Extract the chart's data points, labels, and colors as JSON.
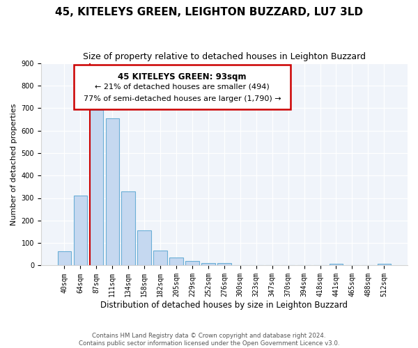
{
  "title": "45, KITELEYS GREEN, LEIGHTON BUZZARD, LU7 3LD",
  "subtitle": "Size of property relative to detached houses in Leighton Buzzard",
  "xlabel": "Distribution of detached houses by size in Leighton Buzzard",
  "ylabel": "Number of detached properties",
  "bar_labels": [
    "40sqm",
    "64sqm",
    "87sqm",
    "111sqm",
    "134sqm",
    "158sqm",
    "182sqm",
    "205sqm",
    "229sqm",
    "252sqm",
    "276sqm",
    "300sqm",
    "323sqm",
    "347sqm",
    "370sqm",
    "394sqm",
    "418sqm",
    "441sqm",
    "465sqm",
    "488sqm",
    "512sqm"
  ],
  "bar_values": [
    63,
    310,
    690,
    655,
    330,
    155,
    65,
    35,
    20,
    12,
    10,
    0,
    0,
    0,
    0,
    0,
    0,
    8,
    0,
    0,
    8
  ],
  "bar_color": "#c5d8f0",
  "bar_edge_color": "#6aaed6",
  "vline_color": "#cc0000",
  "ylim": [
    0,
    900
  ],
  "yticks": [
    0,
    100,
    200,
    300,
    400,
    500,
    600,
    700,
    800,
    900
  ],
  "annotation_title": "45 KITELEYS GREEN: 93sqm",
  "annotation_line1": "← 21% of detached houses are smaller (494)",
  "annotation_line2": "77% of semi-detached houses are larger (1,790) →",
  "footer_line1": "Contains HM Land Registry data © Crown copyright and database right 2024.",
  "footer_line2": "Contains public sector information licensed under the Open Government Licence v3.0.",
  "bg_color": "#f0f4fa"
}
